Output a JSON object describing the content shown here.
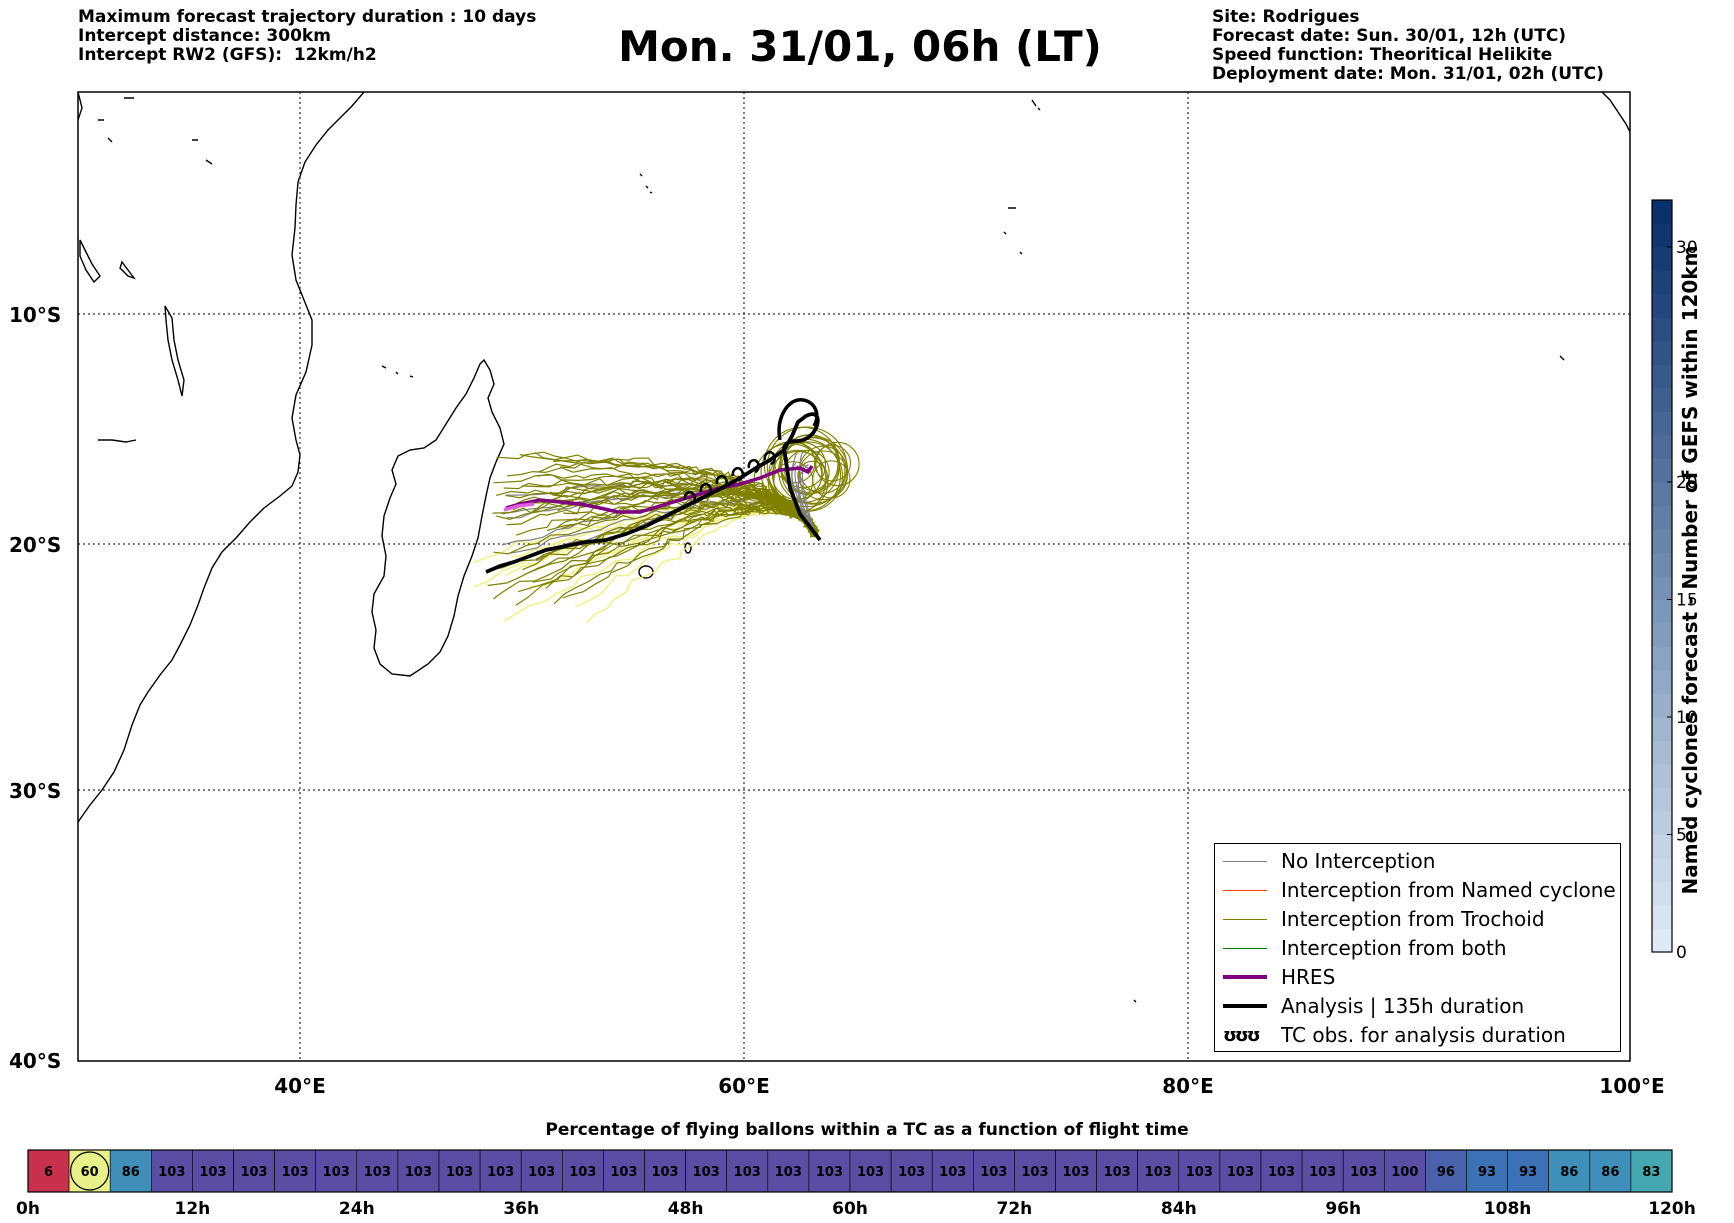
{
  "header": {
    "left": [
      "Maximum forecast trajectory duration : 10 days",
      "Intercept distance: 300km",
      "Intercept RW2 (GFS):  12km/h2"
    ],
    "title": "Mon. 31/01, 06h (LT)",
    "right": [
      "Site: Rodrigues",
      "Forecast date: Sun. 30/01, 12h (UTC)",
      "Speed function: Theoritical Helikite",
      "Deployment date: Mon. 31/01, 02h (UTC)"
    ]
  },
  "map": {
    "lat_labels": [
      "10°S",
      "20°S",
      "30°S",
      "40°S"
    ],
    "lon_labels": [
      "40°E",
      "60°E",
      "80°E",
      "100°E"
    ],
    "lat_range": [
      -40,
      0.7
    ],
    "lon_range": [
      30,
      100
    ],
    "colors": {
      "trochoid": "#808000",
      "hres": "#800080",
      "hres_light": "#e060e0",
      "analysis": "#000000",
      "no_interception": "#808080",
      "named": "#ff4500",
      "both": "#008000",
      "light_track": "#f0f080"
    }
  },
  "legend": {
    "items": [
      {
        "label": "No Interception",
        "color": "#808080"
      },
      {
        "label": "Interception from Named cyclone",
        "color": "#ff4500"
      },
      {
        "label": "Interception from Trochoid",
        "color": "#808000"
      },
      {
        "label": "Interception from both",
        "color": "#008000"
      },
      {
        "label": "HRES",
        "color": "#800080"
      },
      {
        "label": "Analysis | 135h duration",
        "color": "#000000"
      },
      {
        "label": "TC obs. for analysis duration",
        "glyph": "ʊʊʊ"
      }
    ]
  },
  "colorbar": {
    "title": "Named cyclones forecast - Number of GEFS within 120km",
    "ticks": [
      "0",
      "5",
      "10",
      "15",
      "20",
      "30"
    ],
    "range": [
      0,
      32
    ]
  },
  "strip": {
    "title": "Percentage of flying ballons within a TC as a function of flight time",
    "values": [
      "6",
      "60",
      "86",
      "103",
      "103",
      "103",
      "103",
      "103",
      "103",
      "103",
      "103",
      "103",
      "103",
      "103",
      "103",
      "103",
      "103",
      "103",
      "103",
      "103",
      "103",
      "103",
      "103",
      "103",
      "103",
      "103",
      "103",
      "103",
      "103",
      "103",
      "103",
      "103",
      "103",
      "100",
      "96",
      "93",
      "93",
      "86",
      "86",
      "83"
    ],
    "colors": [
      "#c9304d",
      "#e8f08a",
      "#3f8fb8",
      "#5b4da3",
      "#5b4da3",
      "#5b4da3",
      "#5b4da3",
      "#5b4da3",
      "#5b4da3",
      "#5b4da3",
      "#5b4da3",
      "#5b4da3",
      "#5b4da3",
      "#5b4da3",
      "#5b4da3",
      "#5b4da3",
      "#5b4da3",
      "#5b4da3",
      "#5b4da3",
      "#5b4da3",
      "#5b4da3",
      "#5b4da3",
      "#5b4da3",
      "#5b4da3",
      "#5b4da3",
      "#5b4da3",
      "#5b4da3",
      "#5b4da3",
      "#5b4da3",
      "#5b4da3",
      "#5b4da3",
      "#5b4da3",
      "#5b4da3",
      "#5a4fa5",
      "#4a62ad",
      "#3c72b5",
      "#3c72b5",
      "#3f8fb8",
      "#3f8fb8",
      "#45a8b0"
    ],
    "time_labels": [
      "0h",
      "12h",
      "24h",
      "36h",
      "48h",
      "60h",
      "72h",
      "84h",
      "96h",
      "108h",
      "120h"
    ]
  }
}
